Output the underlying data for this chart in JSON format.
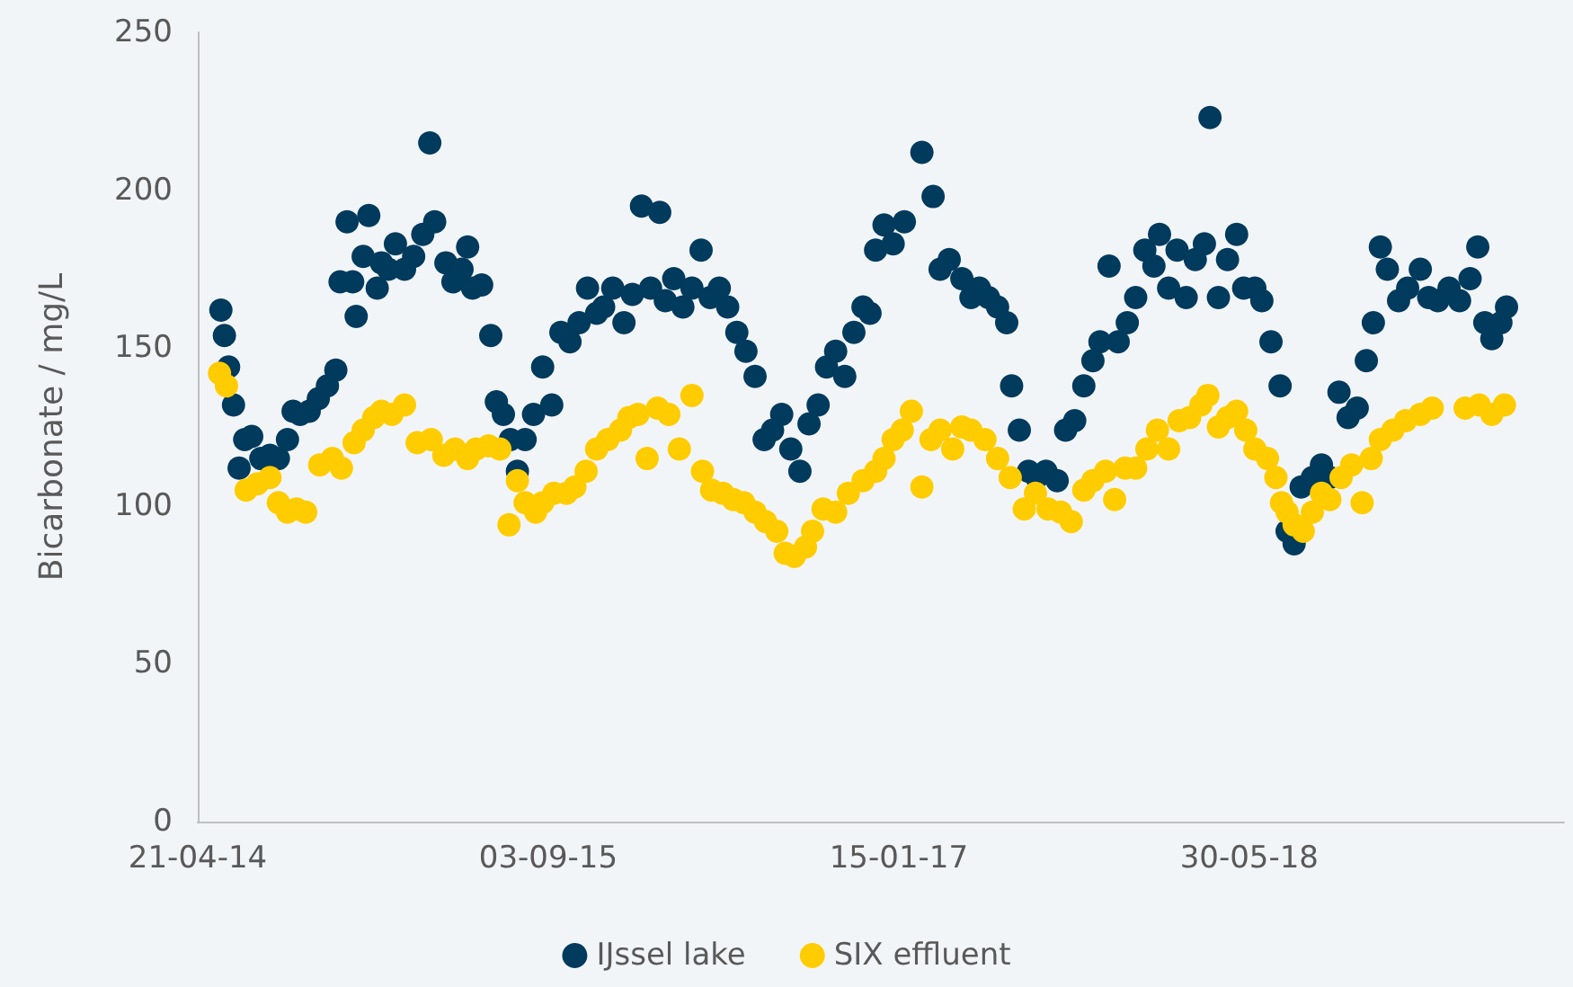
{
  "chart_data": {
    "type": "scatter",
    "ylabel": "Bicarbonate / mg/L",
    "xlim": [
      "2014-04-21",
      "2019-08-22"
    ],
    "xticks": [
      {
        "value": "2014-04-21",
        "label": "21-04-14"
      },
      {
        "value": "2015-09-03",
        "label": "03-09-15"
      },
      {
        "value": "2017-01-15",
        "label": "15-01-17"
      },
      {
        "value": "2018-05-30",
        "label": "30-05-18"
      }
    ],
    "ylim": [
      0,
      250
    ],
    "yticks": [
      0,
      50,
      100,
      150,
      200,
      250
    ],
    "grid": false,
    "legend": "bottom",
    "marker": "circle",
    "series": [
      {
        "name": "IJssel lake",
        "color": "#003a5d",
        "x": [
          "2014-05-24",
          "2014-05-29",
          "2014-06-04",
          "2014-06-11",
          "2014-06-19",
          "2014-06-27",
          "2014-07-07",
          "2014-07-20",
          "2014-08-02",
          "2014-08-14",
          "2014-08-27",
          "2014-09-04",
          "2014-09-14",
          "2014-09-27",
          "2014-10-10",
          "2014-10-23",
          "2014-11-04",
          "2014-11-10",
          "2014-11-20",
          "2014-11-28",
          "2014-12-03",
          "2014-12-13",
          "2014-12-21",
          "2015-01-02",
          "2015-01-08",
          "2015-01-18",
          "2015-01-28",
          "2015-02-10",
          "2015-02-23",
          "2015-03-08",
          "2015-03-18",
          "2015-03-25",
          "2015-04-10",
          "2015-04-20",
          "2015-05-03",
          "2015-05-11",
          "2015-05-18",
          "2015-05-31",
          "2015-06-13",
          "2015-06-21",
          "2015-07-01",
          "2015-07-11",
          "2015-07-21",
          "2015-08-01",
          "2015-08-13",
          "2015-08-26",
          "2015-09-08",
          "2015-09-21",
          "2015-10-04",
          "2015-10-17",
          "2015-10-29",
          "2015-11-11",
          "2015-11-21",
          "2015-12-04",
          "2015-12-20",
          "2016-01-01",
          "2016-01-14",
          "2016-01-27",
          "2016-02-09",
          "2016-02-17",
          "2016-02-29",
          "2016-03-13",
          "2016-03-26",
          "2016-04-08",
          "2016-04-21",
          "2016-05-04",
          "2016-05-16",
          "2016-05-29",
          "2016-06-11",
          "2016-06-24",
          "2016-07-07",
          "2016-07-19",
          "2016-08-01",
          "2016-08-14",
          "2016-08-27",
          "2016-09-09",
          "2016-09-22",
          "2016-10-04",
          "2016-10-17",
          "2016-10-30",
          "2016-11-12",
          "2016-11-25",
          "2016-12-05",
          "2016-12-13",
          "2016-12-25",
          "2017-01-07",
          "2017-01-23",
          "2017-02-17",
          "2017-03-05",
          "2017-03-15",
          "2017-03-28",
          "2017-04-15",
          "2017-04-28",
          "2017-05-10",
          "2017-05-23",
          "2017-06-05",
          "2017-06-18",
          "2017-06-25",
          "2017-07-06",
          "2017-07-19",
          "2017-07-31",
          "2017-08-13",
          "2017-08-29",
          "2017-09-10",
          "2017-09-23",
          "2017-10-06",
          "2017-10-19",
          "2017-10-29",
          "2017-11-11",
          "2017-11-24",
          "2017-12-07",
          "2017-12-19",
          "2018-01-01",
          "2018-01-14",
          "2018-01-22",
          "2018-02-04",
          "2018-02-16",
          "2018-03-01",
          "2018-03-14",
          "2018-03-27",
          "2018-04-04",
          "2018-04-16",
          "2018-04-29",
          "2018-05-12",
          "2018-05-22",
          "2018-06-07",
          "2018-06-17",
          "2018-06-30",
          "2018-07-13",
          "2018-07-23",
          "2018-08-02",
          "2018-08-12",
          "2018-08-28",
          "2018-09-10",
          "2018-09-22",
          "2018-10-05",
          "2018-10-18",
          "2018-10-31",
          "2018-11-13",
          "2018-11-23",
          "2018-12-03",
          "2018-12-13",
          "2018-12-29",
          "2019-01-11",
          "2019-01-29",
          "2019-02-10",
          "2019-02-23",
          "2019-03-11",
          "2019-03-26",
          "2019-04-10",
          "2019-04-21",
          "2019-05-01",
          "2019-05-11",
          "2019-05-24",
          "2019-06-01"
        ],
        "values": [
          162,
          154,
          144,
          132,
          112,
          121,
          122,
          115,
          116,
          115,
          121,
          130,
          129,
          130,
          134,
          138,
          143,
          171,
          190,
          171,
          160,
          179,
          192,
          169,
          177,
          175,
          183,
          175,
          179,
          186,
          215,
          190,
          177,
          171,
          175,
          182,
          169,
          170,
          154,
          133,
          129,
          121,
          111,
          121,
          129,
          144,
          132,
          155,
          152,
          158,
          169,
          161,
          163,
          169,
          158,
          167,
          195,
          169,
          193,
          165,
          172,
          163,
          169,
          181,
          166,
          169,
          163,
          155,
          149,
          141,
          121,
          124,
          129,
          118,
          111,
          126,
          132,
          144,
          149,
          141,
          155,
          163,
          161,
          181,
          189,
          183,
          190,
          212,
          198,
          175,
          178,
          172,
          166,
          169,
          166,
          163,
          158,
          138,
          124,
          111,
          109,
          111,
          108,
          124,
          127,
          138,
          146,
          152,
          176,
          152,
          158,
          166,
          181,
          176,
          186,
          169,
          181,
          166,
          178,
          183,
          223,
          166,
          178,
          186,
          169,
          169,
          165,
          152,
          138,
          92,
          88,
          106,
          109,
          113,
          109,
          136,
          128,
          131,
          146,
          158,
          182,
          175,
          165,
          169,
          175,
          166,
          165,
          169,
          165,
          172,
          182,
          158,
          153,
          158,
          163
        ]
      },
      {
        "name": "SIX effluent",
        "color": "#ffcc00",
        "x": [
          "2014-05-22",
          "2014-06-01",
          "2014-06-29",
          "2014-07-15",
          "2014-08-02",
          "2014-08-14",
          "2014-08-27",
          "2014-09-09",
          "2014-09-22",
          "2014-10-12",
          "2014-10-30",
          "2014-11-12",
          "2014-11-30",
          "2014-12-13",
          "2014-12-28",
          "2015-01-08",
          "2015-01-23",
          "2015-02-10",
          "2015-02-28",
          "2015-03-20",
          "2015-04-07",
          "2015-04-23",
          "2015-05-11",
          "2015-05-23",
          "2015-06-10",
          "2015-06-26",
          "2015-07-09",
          "2015-07-21",
          "2015-08-01",
          "2015-08-16",
          "2015-08-26",
          "2015-09-11",
          "2015-09-29",
          "2015-10-11",
          "2015-10-27",
          "2015-11-11",
          "2015-11-27",
          "2015-12-15",
          "2015-12-27",
          "2016-01-09",
          "2016-01-22",
          "2016-02-06",
          "2016-02-22",
          "2016-03-08",
          "2016-03-26",
          "2016-04-10",
          "2016-04-23",
          "2016-05-09",
          "2016-05-24",
          "2016-06-08",
          "2016-06-24",
          "2016-07-09",
          "2016-07-25",
          "2016-08-06",
          "2016-08-19",
          "2016-09-04",
          "2016-09-14",
          "2016-09-29",
          "2016-10-17",
          "2016-11-04",
          "2016-11-25",
          "2016-12-13",
          "2016-12-25",
          "2017-01-07",
          "2017-01-20",
          "2017-02-02",
          "2017-02-17",
          "2017-03-02",
          "2017-03-15",
          "2017-04-02",
          "2017-04-15",
          "2017-04-28",
          "2017-05-18",
          "2017-06-05",
          "2017-06-23",
          "2017-07-13",
          "2017-07-29",
          "2017-08-16",
          "2017-09-03",
          "2017-09-18",
          "2017-10-06",
          "2017-10-19",
          "2017-11-06",
          "2017-11-19",
          "2017-12-04",
          "2017-12-19",
          "2018-01-04",
          "2018-01-19",
          "2018-02-04",
          "2018-02-19",
          "2018-03-06",
          "2018-03-22",
          "2018-04-01",
          "2018-04-16",
          "2018-04-29",
          "2018-05-12",
          "2018-05-25",
          "2018-06-07",
          "2018-06-25",
          "2018-07-07",
          "2018-07-15",
          "2018-07-23",
          "2018-08-02",
          "2018-08-15",
          "2018-08-28",
          "2018-09-10",
          "2018-09-22",
          "2018-10-08",
          "2018-10-23",
          "2018-11-07",
          "2018-11-20",
          "2018-12-03",
          "2018-12-21",
          "2019-01-08",
          "2019-01-29",
          "2019-02-15",
          "2019-04-03",
          "2019-04-23",
          "2019-05-11",
          "2019-05-29"
        ],
        "values": [
          142,
          138,
          105,
          107,
          109,
          101,
          98,
          99,
          98,
          113,
          115,
          112,
          120,
          124,
          128,
          130,
          129,
          132,
          120,
          121,
          116,
          118,
          115,
          118,
          119,
          118,
          94,
          108,
          101,
          98,
          101,
          104,
          104,
          106,
          111,
          118,
          121,
          124,
          128,
          129,
          115,
          131,
          129,
          118,
          135,
          111,
          105,
          104,
          102,
          101,
          98,
          95,
          92,
          85,
          84,
          87,
          92,
          99,
          98,
          104,
          108,
          111,
          115,
          121,
          124,
          130,
          106,
          121,
          124,
          118,
          125,
          124,
          121,
          115,
          109,
          99,
          104,
          99,
          98,
          95,
          105,
          108,
          111,
          102,
          112,
          112,
          118,
          124,
          118,
          127,
          128,
          132,
          135,
          125,
          128,
          130,
          124,
          118,
          115,
          109,
          101,
          98,
          94,
          92,
          98,
          104,
          102,
          109,
          113,
          101,
          115,
          121,
          124,
          127,
          129,
          131,
          131,
          132,
          129,
          132
        ]
      }
    ]
  }
}
